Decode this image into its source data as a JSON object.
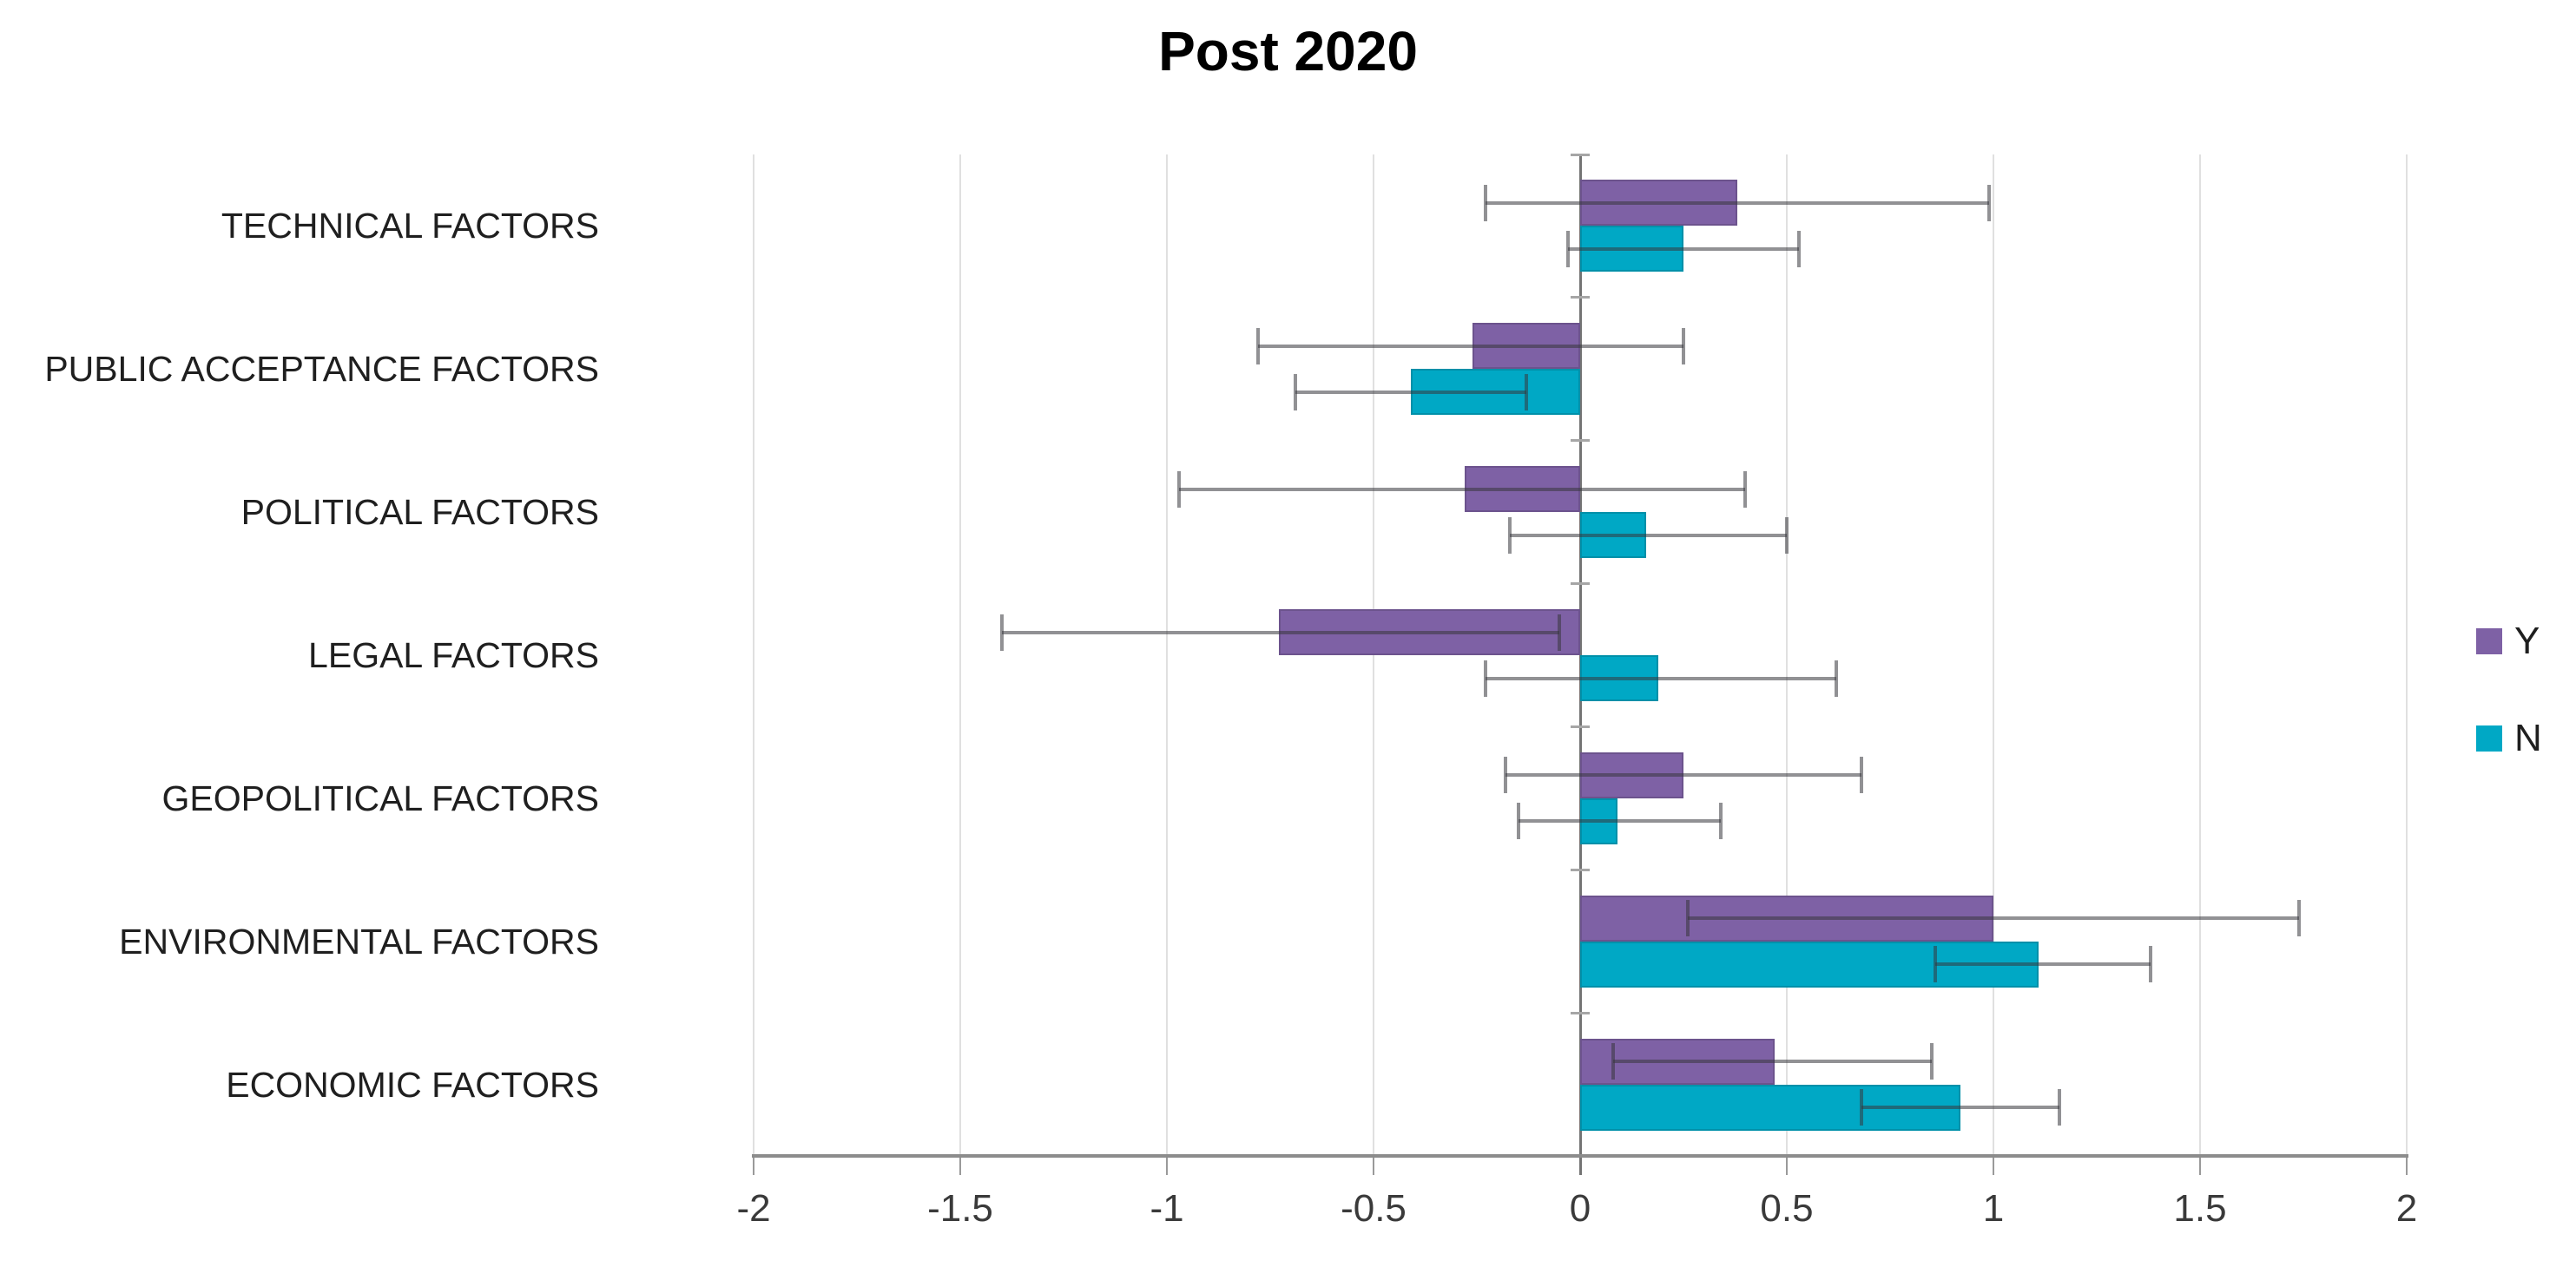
{
  "chart_data": {
    "type": "bar",
    "orientation": "horizontal",
    "title": "Post 2020",
    "categories": [
      "TECHNICAL FACTORS",
      "PUBLIC ACCEPTANCE FACTORS",
      "POLITICAL FACTORS",
      "LEGAL FACTORS",
      "GEOPOLITICAL FACTORS",
      "ENVIRONMENTAL FACTORS",
      "ECONOMIC FACTORS"
    ],
    "series": [
      {
        "name": "Y",
        "color": "#7E61A5",
        "values": [
          0.38,
          -0.26,
          -0.28,
          -0.73,
          0.25,
          1.0,
          0.47
        ],
        "error_low": [
          -0.23,
          -0.78,
          -0.97,
          -1.4,
          -0.18,
          0.26,
          0.08
        ],
        "error_high": [
          0.99,
          0.25,
          0.4,
          -0.05,
          0.68,
          1.74,
          0.85
        ]
      },
      {
        "name": "N",
        "color": "#00A8C5",
        "values": [
          0.25,
          -0.41,
          0.16,
          0.19,
          0.09,
          1.11,
          0.92
        ],
        "error_low": [
          -0.03,
          -0.69,
          -0.17,
          -0.23,
          -0.15,
          0.86,
          0.68
        ],
        "error_high": [
          0.53,
          -0.13,
          0.5,
          0.62,
          0.34,
          1.38,
          1.16
        ]
      }
    ],
    "xlim": [
      -2,
      2
    ],
    "xticks": [
      -2,
      -1.5,
      -1,
      -0.5,
      0,
      0.5,
      1,
      1.5,
      2
    ],
    "xtick_labels": [
      "-2",
      "-1.5",
      "-1",
      "-0.5",
      "0",
      "0.5",
      "1",
      "1.5",
      "2"
    ],
    "grid": true,
    "error_bars": true,
    "legend_position": "right"
  },
  "colors": {
    "series_y": "#7E61A5",
    "series_n": "#00A8C5",
    "gridline": "#E0E0E0",
    "zero_line": "#747474",
    "axis_line": "#8C8C8C",
    "error_bar": "#5A5A5E",
    "text": "#1F1F1F"
  }
}
